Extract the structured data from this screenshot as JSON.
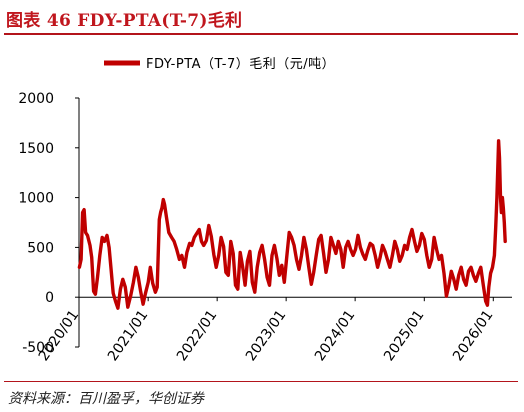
{
  "figure": {
    "title": "图表 46 FDY-PTA(T-7)毛利",
    "source": "资料来源：百川盈孚，华创证券"
  },
  "colors": {
    "accent": "#c0161d",
    "series": "#c00000"
  },
  "chart_data": {
    "type": "line",
    "title": "",
    "xlabel": "",
    "ylabel": "",
    "ylim": [
      -500,
      2000
    ],
    "yticks": [
      -500,
      0,
      500,
      1000,
      1500,
      2000
    ],
    "xlim": [
      "2020-01-01",
      "2026-04-10"
    ],
    "xticks": [
      "2020/01",
      "2021/01",
      "2022/01",
      "2023/01",
      "2024/01",
      "2025/01",
      "2026/01"
    ],
    "grid": false,
    "legend": "top-center",
    "series": [
      {
        "name": "FDY-PTA（T-7）毛利（元/吨）",
        "points": [
          [
            "2020-01-03",
            300
          ],
          [
            "2020-01-12",
            380
          ],
          [
            "2020-01-20",
            850
          ],
          [
            "2020-01-28",
            880
          ],
          [
            "2020-02-05",
            650
          ],
          [
            "2020-02-15",
            620
          ],
          [
            "2020-02-28",
            520
          ],
          [
            "2020-03-08",
            400
          ],
          [
            "2020-03-18",
            60
          ],
          [
            "2020-03-28",
            30
          ],
          [
            "2020-04-08",
            200
          ],
          [
            "2020-04-20",
            420
          ],
          [
            "2020-05-03",
            600
          ],
          [
            "2020-05-15",
            560
          ],
          [
            "2020-05-28",
            620
          ],
          [
            "2020-06-08",
            500
          ],
          [
            "2020-06-18",
            300
          ],
          [
            "2020-06-30",
            40
          ],
          [
            "2020-07-12",
            -40
          ],
          [
            "2020-07-25",
            -110
          ],
          [
            "2020-08-07",
            80
          ],
          [
            "2020-08-20",
            180
          ],
          [
            "2020-09-02",
            100
          ],
          [
            "2020-09-15",
            -100
          ],
          [
            "2020-10-01",
            20
          ],
          [
            "2020-10-15",
            150
          ],
          [
            "2020-10-28",
            300
          ],
          [
            "2020-11-10",
            200
          ],
          [
            "2020-11-22",
            60
          ],
          [
            "2020-12-05",
            -70
          ],
          [
            "2020-12-18",
            40
          ],
          [
            "2021-01-01",
            150
          ],
          [
            "2021-01-12",
            300
          ],
          [
            "2021-01-25",
            140
          ],
          [
            "2021-02-08",
            50
          ],
          [
            "2021-02-18",
            100
          ],
          [
            "2021-03-01",
            780
          ],
          [
            "2021-03-08",
            850
          ],
          [
            "2021-03-15",
            900
          ],
          [
            "2021-03-22",
            980
          ],
          [
            "2021-03-29",
            930
          ],
          [
            "2021-04-08",
            800
          ],
          [
            "2021-04-20",
            650
          ],
          [
            "2021-05-05",
            600
          ],
          [
            "2021-05-18",
            560
          ],
          [
            "2021-06-01",
            480
          ],
          [
            "2021-06-15",
            380
          ],
          [
            "2021-06-28",
            420
          ],
          [
            "2021-07-12",
            300
          ],
          [
            "2021-07-25",
            450
          ],
          [
            "2021-08-08",
            540
          ],
          [
            "2021-08-20",
            520
          ],
          [
            "2021-09-02",
            600
          ],
          [
            "2021-09-15",
            640
          ],
          [
            "2021-09-28",
            680
          ],
          [
            "2021-10-10",
            560
          ],
          [
            "2021-10-22",
            520
          ],
          [
            "2021-11-05",
            570
          ],
          [
            "2021-11-18",
            720
          ],
          [
            "2021-12-01",
            610
          ],
          [
            "2021-12-14",
            430
          ],
          [
            "2021-12-27",
            300
          ],
          [
            "2022-01-09",
            420
          ],
          [
            "2022-01-22",
            600
          ],
          [
            "2022-02-04",
            510
          ],
          [
            "2022-02-16",
            250
          ],
          [
            "2022-03-01",
            220
          ],
          [
            "2022-03-14",
            560
          ],
          [
            "2022-03-27",
            440
          ],
          [
            "2022-04-08",
            120
          ],
          [
            "2022-04-20",
            80
          ],
          [
            "2022-05-03",
            450
          ],
          [
            "2022-05-16",
            300
          ],
          [
            "2022-05-29",
            120
          ],
          [
            "2022-06-10",
            360
          ],
          [
            "2022-06-23",
            460
          ],
          [
            "2022-07-06",
            150
          ],
          [
            "2022-07-19",
            50
          ],
          [
            "2022-08-01",
            300
          ],
          [
            "2022-08-14",
            450
          ],
          [
            "2022-08-27",
            520
          ],
          [
            "2022-09-09",
            380
          ],
          [
            "2022-09-22",
            200
          ],
          [
            "2022-10-05",
            120
          ],
          [
            "2022-10-18",
            420
          ],
          [
            "2022-10-31",
            520
          ],
          [
            "2022-11-13",
            390
          ],
          [
            "2022-11-26",
            220
          ],
          [
            "2022-12-09",
            320
          ],
          [
            "2022-12-22",
            150
          ],
          [
            "2023-01-04",
            400
          ],
          [
            "2023-01-17",
            650
          ],
          [
            "2023-01-30",
            600
          ],
          [
            "2023-02-12",
            520
          ],
          [
            "2023-02-25",
            380
          ],
          [
            "2023-03-10",
            280
          ],
          [
            "2023-03-23",
            420
          ],
          [
            "2023-04-05",
            600
          ],
          [
            "2023-04-18",
            480
          ],
          [
            "2023-05-01",
            300
          ],
          [
            "2023-05-14",
            130
          ],
          [
            "2023-05-27",
            250
          ],
          [
            "2023-06-09",
            420
          ],
          [
            "2023-06-22",
            580
          ],
          [
            "2023-07-05",
            620
          ],
          [
            "2023-07-18",
            440
          ],
          [
            "2023-07-31",
            250
          ],
          [
            "2023-08-13",
            380
          ],
          [
            "2023-08-26",
            600
          ],
          [
            "2023-09-08",
            520
          ],
          [
            "2023-09-21",
            440
          ],
          [
            "2023-10-04",
            560
          ],
          [
            "2023-10-17",
            480
          ],
          [
            "2023-10-30",
            300
          ],
          [
            "2023-11-12",
            500
          ],
          [
            "2023-11-25",
            560
          ],
          [
            "2023-12-08",
            480
          ],
          [
            "2023-12-21",
            420
          ],
          [
            "2024-01-03",
            480
          ],
          [
            "2024-01-16",
            620
          ],
          [
            "2024-01-29",
            500
          ],
          [
            "2024-02-11",
            430
          ],
          [
            "2024-02-24",
            380
          ],
          [
            "2024-03-08",
            470
          ],
          [
            "2024-03-21",
            540
          ],
          [
            "2024-04-03",
            520
          ],
          [
            "2024-04-16",
            420
          ],
          [
            "2024-04-29",
            300
          ],
          [
            "2024-05-12",
            400
          ],
          [
            "2024-05-25",
            520
          ],
          [
            "2024-06-07",
            460
          ],
          [
            "2024-06-20",
            380
          ],
          [
            "2024-07-03",
            300
          ],
          [
            "2024-07-16",
            420
          ],
          [
            "2024-07-29",
            560
          ],
          [
            "2024-08-11",
            480
          ],
          [
            "2024-08-24",
            360
          ],
          [
            "2024-09-06",
            420
          ],
          [
            "2024-09-19",
            520
          ],
          [
            "2024-10-02",
            480
          ],
          [
            "2024-10-15",
            600
          ],
          [
            "2024-10-28",
            680
          ],
          [
            "2024-11-10",
            560
          ],
          [
            "2024-11-23",
            460
          ],
          [
            "2024-12-06",
            520
          ],
          [
            "2024-12-19",
            640
          ],
          [
            "2025-01-01",
            580
          ],
          [
            "2025-01-14",
            420
          ],
          [
            "2025-01-27",
            300
          ],
          [
            "2025-02-09",
            380
          ],
          [
            "2025-02-22",
            600
          ],
          [
            "2025-03-07",
            480
          ],
          [
            "2025-03-20",
            380
          ],
          [
            "2025-04-02",
            420
          ],
          [
            "2025-04-15",
            240
          ],
          [
            "2025-04-28",
            10
          ],
          [
            "2025-05-11",
            120
          ],
          [
            "2025-05-24",
            260
          ],
          [
            "2025-06-06",
            180
          ],
          [
            "2025-06-19",
            80
          ],
          [
            "2025-07-02",
            220
          ],
          [
            "2025-07-15",
            300
          ],
          [
            "2025-07-28",
            180
          ],
          [
            "2025-08-10",
            120
          ],
          [
            "2025-08-23",
            260
          ],
          [
            "2025-09-05",
            300
          ],
          [
            "2025-09-18",
            220
          ],
          [
            "2025-10-01",
            160
          ],
          [
            "2025-10-14",
            240
          ],
          [
            "2025-10-27",
            300
          ],
          [
            "2025-11-09",
            120
          ],
          [
            "2025-11-22",
            -40
          ],
          [
            "2025-12-01",
            -80
          ],
          [
            "2025-12-08",
            100
          ],
          [
            "2025-12-18",
            240
          ],
          [
            "2025-12-28",
            300
          ],
          [
            "2026-01-07",
            420
          ],
          [
            "2026-01-14",
            700
          ],
          [
            "2026-01-20",
            1000
          ],
          [
            "2026-01-25",
            1300
          ],
          [
            "2026-01-29",
            1570
          ],
          [
            "2026-02-03",
            1400
          ],
          [
            "2026-02-08",
            1000
          ],
          [
            "2026-02-13",
            850
          ],
          [
            "2026-02-18",
            1000
          ],
          [
            "2026-02-23",
            900
          ],
          [
            "2026-02-28",
            750
          ],
          [
            "2026-03-05",
            560
          ]
        ]
      }
    ]
  }
}
